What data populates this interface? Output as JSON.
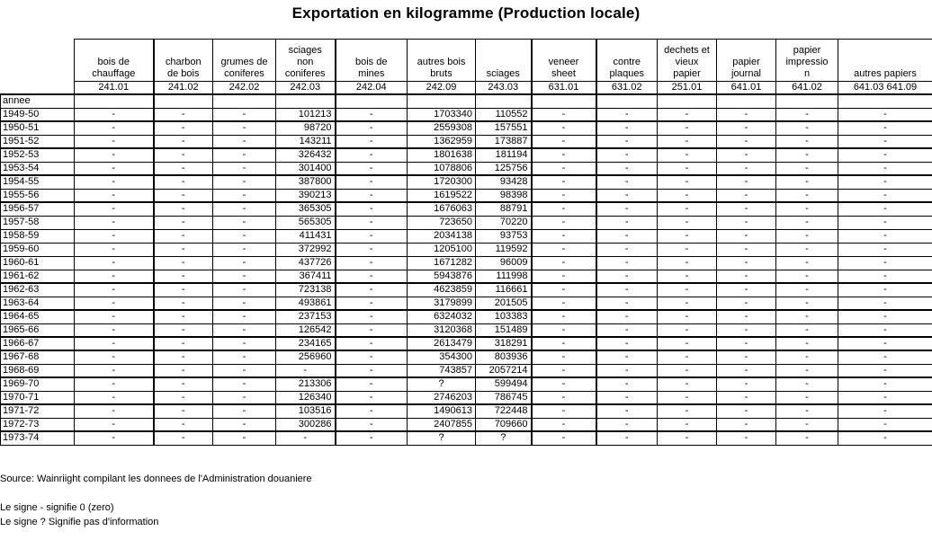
{
  "title": "Exportation en kilogramme (Production locale)",
  "colors": {
    "background": "#ffffff",
    "text": "#000000",
    "border": "#000000"
  },
  "table": {
    "row_header": "annee",
    "columns": [
      {
        "label_lines": [
          "bois de",
          "chauffage"
        ],
        "code": "241.01"
      },
      {
        "label_lines": [
          "charbon",
          "de bois"
        ],
        "code": "241.02"
      },
      {
        "label_lines": [
          "grumes de",
          "coniferes"
        ],
        "code": "242.02"
      },
      {
        "label_lines": [
          "sciages",
          "non",
          "coniferes"
        ],
        "code": "242.03"
      },
      {
        "label_lines": [
          "bois de",
          "mines"
        ],
        "code": "242.04"
      },
      {
        "label_lines": [
          "autres bois",
          "bruts"
        ],
        "code": "242.09"
      },
      {
        "label_lines": [
          "sciages"
        ],
        "code": "243.03"
      },
      {
        "label_lines": [
          "veneer",
          "sheet"
        ],
        "code": "631.01"
      },
      {
        "label_lines": [
          "contre",
          "plaques"
        ],
        "code": "631.02"
      },
      {
        "label_lines": [
          "dechets et",
          "vieux",
          "papier"
        ],
        "code": "251.01"
      },
      {
        "label_lines": [
          "papier",
          "journal"
        ],
        "code": "641.01"
      },
      {
        "label_lines": [
          "papier",
          "impressio",
          "n"
        ],
        "code": "641.02"
      },
      {
        "label_lines": [
          "autres papiers"
        ],
        "code": "641.03 641.09"
      }
    ],
    "rows": [
      {
        "year": "1949-50",
        "values": [
          "-",
          "-",
          "-",
          "101213",
          "-",
          "1703340",
          "110552",
          "-",
          "-",
          "-",
          "-",
          "-",
          "-"
        ]
      },
      {
        "year": "1950-51",
        "values": [
          "-",
          "-",
          "-",
          "98720",
          "-",
          "2559308",
          "157551",
          "-",
          "-",
          "-",
          "-",
          "-",
          "-"
        ]
      },
      {
        "year": "1951-52",
        "values": [
          "-",
          "-",
          "-",
          "143211",
          "-",
          "1362959",
          "173887",
          "-",
          "-",
          "-",
          "-",
          "-",
          "-"
        ]
      },
      {
        "year": "1952-53",
        "values": [
          "-",
          "-",
          "-",
          "326432",
          "-",
          "1801638",
          "181194",
          "-",
          "-",
          "-",
          "-",
          "-",
          "-"
        ]
      },
      {
        "year": "1953-54",
        "values": [
          "-",
          "-",
          "-",
          "301400",
          "-",
          "1078806",
          "125756",
          "-",
          "-",
          "-",
          "-",
          "-",
          "-"
        ]
      },
      {
        "year": "1954-55",
        "values": [
          "-",
          "-",
          "-",
          "387800",
          "-",
          "1720300",
          "93428",
          "-",
          "-",
          "-",
          "-",
          "-",
          "-"
        ]
      },
      {
        "year": "1955-56",
        "values": [
          "-",
          "-",
          "-",
          "390213",
          "-",
          "1619522",
          "98398",
          "-",
          "-",
          "-",
          "-",
          "-",
          "-"
        ]
      },
      {
        "year": "1956-57",
        "values": [
          "-",
          "-",
          "-",
          "365305",
          "-",
          "1676063",
          "88791",
          "-",
          "-",
          "-",
          "-",
          "-",
          "-"
        ]
      },
      {
        "year": "1957-58",
        "values": [
          "-",
          "-",
          "-",
          "565305",
          "-",
          "723650",
          "70220",
          "-",
          "-",
          "-",
          "-",
          "-",
          "-"
        ]
      },
      {
        "year": "1958-59",
        "values": [
          "-",
          "-",
          "-",
          "411431",
          "-",
          "2034138",
          "93753",
          "-",
          "-",
          "-",
          "-",
          "-",
          "-"
        ]
      },
      {
        "year": "1959-60",
        "values": [
          "-",
          "-",
          "-",
          "372992",
          "-",
          "1205100",
          "119592",
          "-",
          "-",
          "-",
          "-",
          "-",
          "-"
        ]
      },
      {
        "year": "1960-61",
        "values": [
          "-",
          "-",
          "-",
          "437726",
          "-",
          "1671282",
          "96009",
          "-",
          "-",
          "-",
          "-",
          "-",
          "-"
        ]
      },
      {
        "year": "1961-62",
        "values": [
          "-",
          "-",
          "-",
          "367411",
          "-",
          "5943876",
          "111998",
          "-",
          "-",
          "-",
          "-",
          "-",
          "-"
        ]
      },
      {
        "year": "1962-63",
        "values": [
          "-",
          "-",
          "-",
          "723138",
          "-",
          "4623859",
          "116661",
          "-",
          "-",
          "-",
          "-",
          "-",
          "-"
        ]
      },
      {
        "year": "1963-64",
        "values": [
          "-",
          "-",
          "-",
          "493861",
          "-",
          "3179899",
          "201505",
          "-",
          "-",
          "-",
          "-",
          "-",
          "-"
        ]
      },
      {
        "year": "1964-65",
        "values": [
          "-",
          "-",
          "-",
          "237153",
          "-",
          "6324032",
          "103383",
          "-",
          "-",
          "-",
          "-",
          "-",
          "-"
        ]
      },
      {
        "year": "1965-66",
        "values": [
          "-",
          "-",
          "-",
          "126542",
          "-",
          "3120368",
          "151489",
          "-",
          "-",
          "-",
          "-",
          "-",
          "-"
        ]
      },
      {
        "year": "1966-67",
        "values": [
          "-",
          "-",
          "-",
          "234165",
          "-",
          "2613479",
          "318291",
          "-",
          "-",
          "-",
          "-",
          "-",
          "-"
        ]
      },
      {
        "year": "1967-68",
        "values": [
          "-",
          "-",
          "-",
          "256960",
          "-",
          "354300",
          "803936",
          "-",
          "-",
          "-",
          "-",
          "-",
          "-"
        ]
      },
      {
        "year": "1968-69",
        "values": [
          "-",
          "-",
          "-",
          "-",
          "-",
          "743857",
          "2057214",
          "-",
          "-",
          "-",
          "-",
          "-",
          "-"
        ]
      },
      {
        "year": "1969-70",
        "values": [
          "-",
          "-",
          "-",
          "213306",
          "-",
          "?",
          "599494",
          "-",
          "-",
          "-",
          "-",
          "-",
          "-"
        ]
      },
      {
        "year": "1970-71",
        "values": [
          "-",
          "-",
          "-",
          "126340",
          "-",
          "2746203",
          "786745",
          "-",
          "-",
          "-",
          "-",
          "-",
          "-"
        ]
      },
      {
        "year": "1971-72",
        "values": [
          "-",
          "-",
          "-",
          "103516",
          "-",
          "1490613",
          "722448",
          "-",
          "-",
          "-",
          "-",
          "-",
          "-"
        ]
      },
      {
        "year": "1972-73",
        "values": [
          "-",
          "-",
          "-",
          "300286",
          "-",
          "2407855",
          "709660",
          "-",
          "-",
          "-",
          "-",
          "-",
          "-"
        ]
      },
      {
        "year": "1973-74",
        "values": [
          "-",
          "-",
          "-",
          "-",
          "-",
          "?",
          "?",
          "-",
          "-",
          "-",
          "-",
          "-",
          "-"
        ]
      }
    ]
  },
  "footer": {
    "source": "Source: Wainriight compilant les donnees de l'Administration douaniere",
    "note_dash": "Le signe - signifie 0 (zero)",
    "note_qmark": "Le signe ? Signifie pas d'information"
  }
}
